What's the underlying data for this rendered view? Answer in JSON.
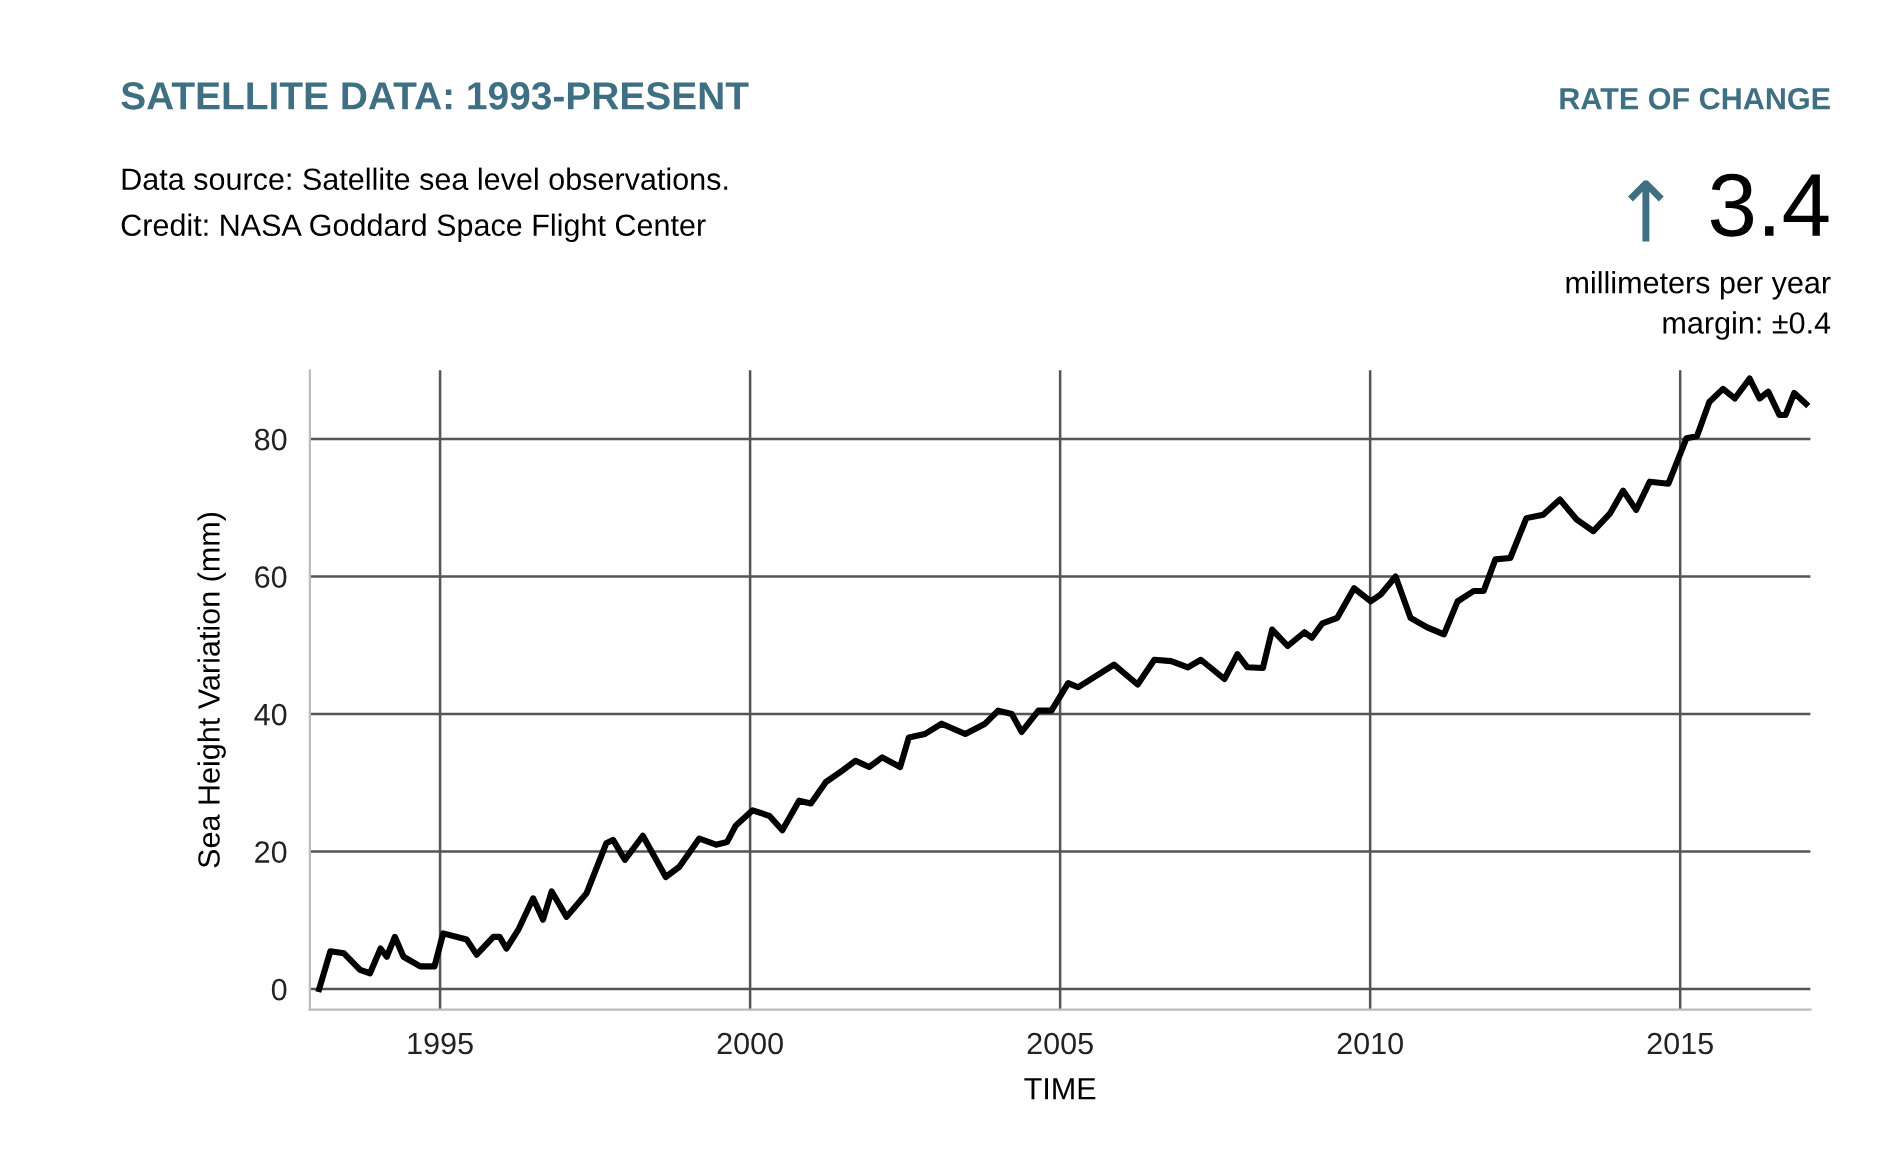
{
  "chart_data": {
    "type": "line",
    "title": "SATELLITE DATA: 1993-PRESENT",
    "xlabel": "TIME",
    "ylabel": "Sea Height Variation (mm)",
    "annotations": [
      "Data source: Satellite sea level observations.",
      "Credit: NASA Goddard Space Flight Center",
      "RATE OF CHANGE",
      "↑",
      "3.4",
      "millimeters per year",
      "margin: ±0.4"
    ],
    "series": [
      {
        "color": "#000000",
        "x": [
          1993.05,
          1993.23,
          1993.45,
          1993.71,
          1993.87,
          1994.04,
          1994.14,
          1994.27,
          1994.41,
          1994.68,
          1994.91,
          1995.05,
          1995.43,
          1995.59,
          1995.86,
          1995.96,
          1996.07,
          1996.26,
          1996.5,
          1996.66,
          1996.8,
          1997.04,
          1997.36,
          1997.68,
          1997.79,
          1997.98,
          1998.27,
          1998.64,
          1998.86,
          1999.18,
          1999.45,
          1999.63,
          1999.77,
          2000.04,
          2000.31,
          2000.52,
          2000.79,
          2000.98,
          2001.22,
          2001.49,
          2001.7,
          2001.92,
          2002.13,
          2002.42,
          2002.56,
          2002.82,
          2003.09,
          2003.47,
          2003.79,
          2004.0,
          2004.22,
          2004.38,
          2004.65,
          2004.86,
          2005.13,
          2005.29,
          2005.87,
          2006.25,
          2006.52,
          2006.79,
          2007.06,
          2007.27,
          2007.65,
          2007.86,
          2008.02,
          2008.27,
          2008.42,
          2008.67,
          2008.94,
          2009.06,
          2009.23,
          2009.47,
          2009.74,
          2010.01,
          2010.17,
          2010.41,
          2010.65,
          2010.92,
          2011.19,
          2011.41,
          2011.67,
          2011.83,
          2012.02,
          2012.26,
          2012.52,
          2012.79,
          2013.06,
          2013.33,
          2013.6,
          2013.87,
          2014.08,
          2014.29,
          2014.51,
          2014.81,
          2015.1,
          2015.27,
          2015.47,
          2015.69,
          2015.88,
          2016.12,
          2016.28,
          2016.42,
          2016.6,
          2016.7,
          2016.84,
          2017.03
        ],
        "values": [
          0,
          5.5,
          5.2,
          2.8,
          2.3,
          5.9,
          4.7,
          7.6,
          4.7,
          3.3,
          3.3,
          8.1,
          7.2,
          5.0,
          7.6,
          7.6,
          5.9,
          8.6,
          13.2,
          10.1,
          14.2,
          10.5,
          13.9,
          21.2,
          21.7,
          18.8,
          22.3,
          16.3,
          17.8,
          21.9,
          21.0,
          21.4,
          23.8,
          26.0,
          25.2,
          23.1,
          27.4,
          27.0,
          30.1,
          31.8,
          33.2,
          32.3,
          33.7,
          32.3,
          36.6,
          37.1,
          38.6,
          37.1,
          38.6,
          40.5,
          40.0,
          37.4,
          40.5,
          40.5,
          44.5,
          43.9,
          47.2,
          44.3,
          47.9,
          47.7,
          46.8,
          47.9,
          45.1,
          48.7,
          46.8,
          46.7,
          52.3,
          49.9,
          51.9,
          51.1,
          53.2,
          54.0,
          58.3,
          56.4,
          57.4,
          60.0,
          54.0,
          52.6,
          51.6,
          56.4,
          57.9,
          57.9,
          62.5,
          62.7,
          68.5,
          69.0,
          71.2,
          68.3,
          66.6,
          69.2,
          72.5,
          69.7,
          73.8,
          73.5,
          80.1,
          80.4,
          85.4,
          87.3,
          85.9,
          88.8,
          85.9,
          86.9,
          83.5,
          83.5,
          86.7,
          85.1
        ]
      }
    ],
    "xlim": [
      1992.9,
      2017.1
    ],
    "ylim": [
      -3,
      90
    ],
    "xticks": [
      1995,
      2000,
      2005,
      2010,
      2015
    ],
    "yticks": [
      0,
      20,
      40,
      60,
      80
    ],
    "grid": true,
    "legend": false,
    "marker": "none",
    "line_style": "solid"
  }
}
